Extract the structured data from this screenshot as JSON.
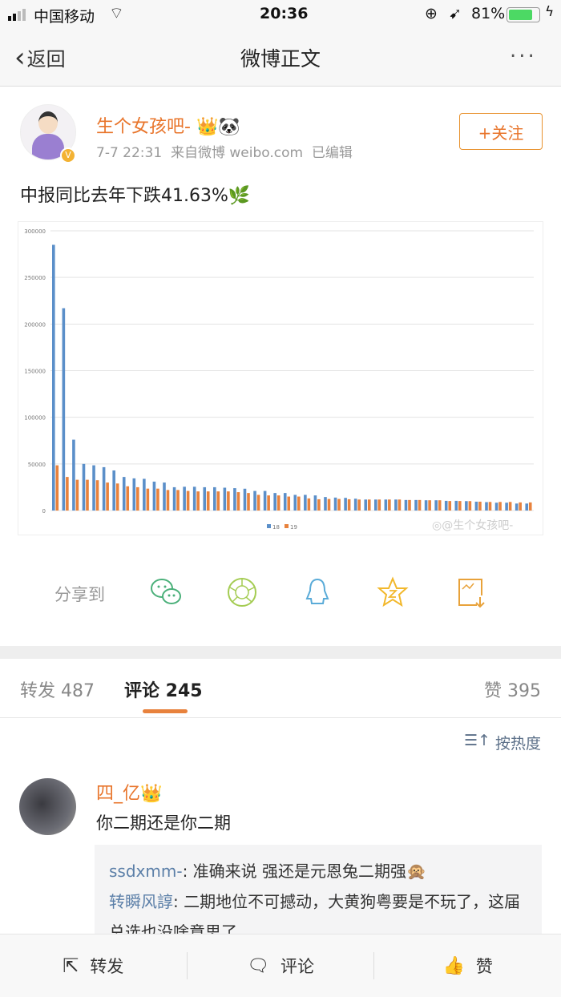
{
  "status_bar": {
    "carrier": "中国移动",
    "time": "20:36",
    "battery": "81%",
    "battery_level": 0.81
  },
  "nav": {
    "back": "返回",
    "title": "微博正文",
    "more": "..."
  },
  "post": {
    "author": "生个女孩吧-",
    "meta": "7-7 22:31  来自微博 weibo.com  已编辑",
    "follow": "+关注",
    "text": "中报同比去年下跌41.63%",
    "watermark": "@生个女孩吧-"
  },
  "chart_data": {
    "type": "bar",
    "title": "",
    "xlabel": "",
    "ylabel": "",
    "ylim": [
      0,
      300000
    ],
    "yticks": [
      "0",
      "50000",
      "100000",
      "150000",
      "200000",
      "250000",
      "300000"
    ],
    "grid": true,
    "legend": "bottom-center",
    "colors": {
      "18": "#5b8fc9",
      "19": "#e8823d"
    },
    "series": [
      {
        "name": "18",
        "values": [
          285000,
          217000,
          76000,
          50000,
          48500,
          46500,
          43000,
          36000,
          34500,
          34000,
          31000,
          30000,
          25000,
          25500,
          25500,
          25000,
          25000,
          24500,
          24000,
          23400,
          21000,
          21000,
          18800,
          18800,
          16800,
          16800,
          16200,
          14500,
          13900,
          13600,
          12700,
          11800,
          11800,
          11800,
          11800,
          11300,
          11300,
          11000,
          11000,
          10400,
          10400,
          10100,
          9500,
          9000,
          8400,
          8400,
          7500,
          7500
        ]
      },
      {
        "name": "19",
        "values": [
          48500,
          36000,
          33000,
          33000,
          32500,
          30000,
          29000,
          26000,
          25000,
          23500,
          23500,
          22000,
          22000,
          21000,
          20500,
          20500,
          20500,
          20500,
          19700,
          18800,
          16800,
          16200,
          16200,
          15000,
          15000,
          13000,
          12100,
          12400,
          12400,
          12100,
          11800,
          11800,
          11800,
          11800,
          11800,
          11300,
          11300,
          11000,
          11000,
          10200,
          10200,
          10100,
          9500,
          9200,
          9200,
          9200,
          8700,
          8700
        ]
      }
    ]
  },
  "share": {
    "label": "分享到",
    "icons": [
      "wechat-icon",
      "moments-icon",
      "qq-icon",
      "qzone-icon",
      "save-image-icon"
    ]
  },
  "tabs": {
    "repost": "转发 487",
    "comment": "评论 245",
    "like": "赞 395"
  },
  "sort": "按热度",
  "comment": {
    "user": "四_亿",
    "text": "你二期还是你二期",
    "replies": [
      {
        "user": "ssdxmm-",
        "text": ": 准确来说 强还是元恩兔二期强🙊"
      },
      {
        "user": "转瞬风諄",
        "text": ": 二期地位不可撼动，大黄狗粤要是不玩了，这届总选也没啥意思了"
      }
    ]
  },
  "bottom": {
    "repost": "转发",
    "comment": "评论",
    "like": "赞"
  },
  "colors": {
    "accent": "#e8742a",
    "link": "#5b7fa8"
  }
}
